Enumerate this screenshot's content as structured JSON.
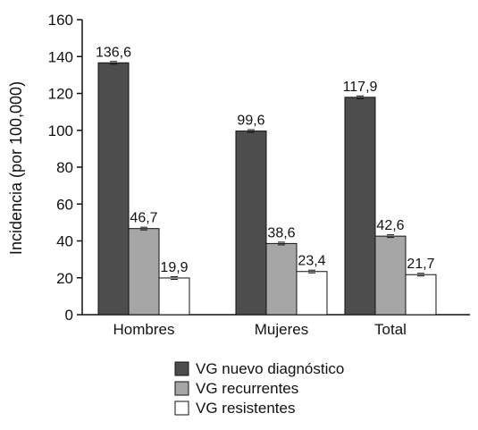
{
  "chart_data": {
    "type": "bar",
    "categories": [
      "Hombres",
      "Mujeres",
      "Total"
    ],
    "ylabel": "Incidencia (por 100,000)",
    "ylim": [
      0,
      160
    ],
    "yticks": [
      "0",
      "20",
      "40",
      "60",
      "80",
      "100",
      "120",
      "140",
      "160"
    ],
    "grid": false,
    "legend_position": "bottom",
    "error_bars": true,
    "series": [
      {
        "name": "VG nuevo diagnóstico",
        "color": "#4d4d4d",
        "values": [
          136.6,
          99.6,
          117.9
        ],
        "labels": [
          "136,6",
          "99,6",
          "117,9"
        ]
      },
      {
        "name": "VG recurrentes",
        "color": "#a6a6a6",
        "values": [
          46.7,
          38.6,
          42.6
        ],
        "labels": [
          "46,7",
          "38,6",
          "42,6"
        ]
      },
      {
        "name": "VG resistentes",
        "color": "#ffffff",
        "values": [
          19.9,
          23.4,
          21.7
        ],
        "labels": [
          "19,9",
          "23,4",
          "21,7"
        ]
      }
    ]
  }
}
